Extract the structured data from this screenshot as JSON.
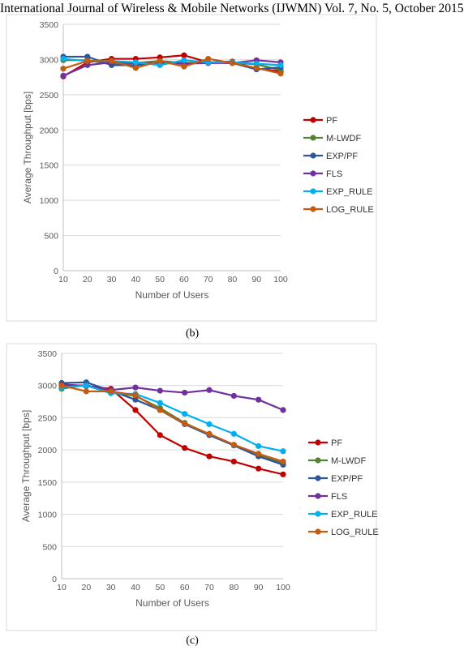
{
  "header": "International Journal of Wireless & Mobile Networks (IJWMN) Vol. 7, No. 5, October 2015",
  "colors": {
    "PF": "#c00000",
    "M-LWDF": "#548235",
    "EXP/PF": "#2e5597",
    "FLS": "#7030a0",
    "EXP_RULE": "#00b0f0",
    "LOG_RULE": "#c55a11"
  },
  "chart_data": [
    {
      "type": "line",
      "caption": "(b)",
      "xlabel": "Number of Users",
      "ylabel": "Average Throughput [bps]",
      "ylim": [
        0,
        3500
      ],
      "yticks": [
        "0",
        "500",
        "1000",
        "1500",
        "2000",
        "2500",
        "3000",
        "3500"
      ],
      "grid": true,
      "legend": "right",
      "x": [
        "10",
        "20",
        "30",
        "40",
        "50",
        "60",
        "70",
        "80",
        "90",
        "100"
      ],
      "series": [
        {
          "name": "PF",
          "values": [
            2760,
            2960,
            3010,
            3010,
            3030,
            3060,
            2960,
            2970,
            2870,
            2830
          ]
        },
        {
          "name": "M-LWDF",
          "values": [
            2990,
            2990,
            2930,
            2950,
            2980,
            2950,
            2960,
            2960,
            2930,
            2850
          ]
        },
        {
          "name": "EXP/PF",
          "values": [
            3040,
            3040,
            2920,
            2920,
            2960,
            2940,
            2960,
            2950,
            2860,
            2890
          ]
        },
        {
          "name": "FLS",
          "values": [
            2770,
            2920,
            2960,
            2950,
            2950,
            2940,
            2950,
            2950,
            2990,
            2960
          ]
        },
        {
          "name": "EXP_RULE",
          "values": [
            3010,
            2980,
            2980,
            2960,
            2920,
            2990,
            2960,
            2960,
            2940,
            2920
          ]
        },
        {
          "name": "LOG_RULE",
          "values": [
            2870,
            2980,
            2980,
            2880,
            2980,
            2900,
            3010,
            2950,
            2880,
            2800
          ]
        }
      ]
    },
    {
      "type": "line",
      "caption": "(c)",
      "xlabel": "Number of Users",
      "ylabel": "Average Throughput [bps]",
      "ylim": [
        0,
        3500
      ],
      "yticks": [
        "0",
        "500",
        "1000",
        "1500",
        "2000",
        "2500",
        "3000",
        "3500"
      ],
      "grid": true,
      "legend": "right",
      "x": [
        "10",
        "20",
        "30",
        "40",
        "50",
        "60",
        "70",
        "80",
        "90",
        "100"
      ],
      "series": [
        {
          "name": "PF",
          "values": [
            3020,
            2990,
            2950,
            2620,
            2230,
            2030,
            1900,
            1820,
            1710,
            1620
          ]
        },
        {
          "name": "M-LWDF",
          "values": [
            2950,
            3010,
            2890,
            2840,
            2650,
            2420,
            2240,
            2080,
            1920,
            1800
          ]
        },
        {
          "name": "EXP/PF",
          "values": [
            3040,
            3050,
            2920,
            2780,
            2620,
            2400,
            2230,
            2070,
            1900,
            1770
          ]
        },
        {
          "name": "FLS",
          "values": [
            3010,
            3000,
            2930,
            2970,
            2920,
            2890,
            2930,
            2840,
            2780,
            2620
          ]
        },
        {
          "name": "EXP_RULE",
          "values": [
            2970,
            3000,
            2880,
            2870,
            2730,
            2560,
            2400,
            2250,
            2060,
            1980
          ]
        },
        {
          "name": "LOG_RULE",
          "values": [
            3000,
            2910,
            2910,
            2850,
            2620,
            2410,
            2250,
            2080,
            1940,
            1820
          ]
        }
      ]
    }
  ]
}
